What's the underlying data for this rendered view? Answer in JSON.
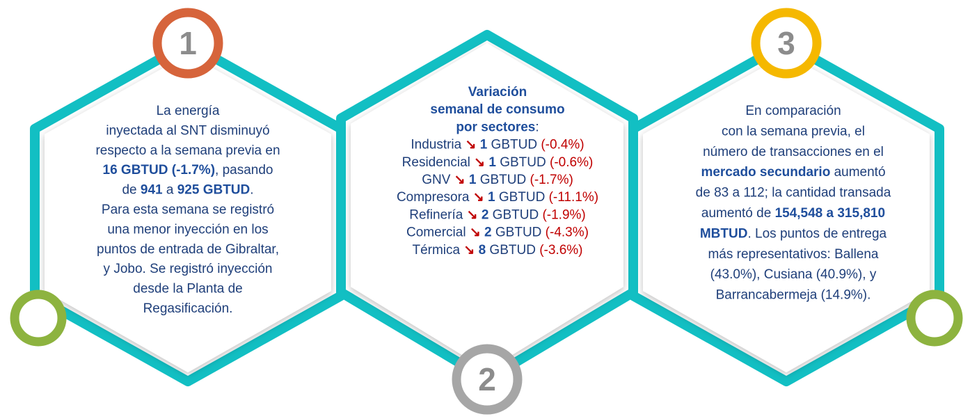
{
  "panels": [
    {
      "number": "1",
      "lines": [
        [
          "La energía"
        ],
        [
          "inyectada al SNT disminuyó"
        ],
        [
          "respecto a la semana previa en"
        ],
        [
          {
            "text": "16 GBTUD (-1.7%)",
            "style": "bold"
          },
          ", pasando"
        ],
        [
          "de ",
          {
            "text": "941",
            "style": "bold"
          },
          " a ",
          {
            "text": "925 GBTUD",
            "style": "bold"
          },
          "."
        ],
        [
          "Para esta semana se registró"
        ],
        [
          "una menor inyección en los"
        ],
        [
          "puntos de entrada de Gibraltar,"
        ],
        [
          "y Jobo. Se registró inyección"
        ],
        [
          "desde la Planta de"
        ],
        [
          "Regasificación."
        ]
      ]
    },
    {
      "number": "2",
      "lines": [
        [
          {
            "text": "Variación",
            "style": "bold"
          }
        ],
        [
          {
            "text": "semanal de consumo",
            "style": "bold"
          }
        ],
        [
          {
            "text": "por sectores",
            "style": "bold"
          },
          ":"
        ],
        [
          "Industria ",
          {
            "text": "↘",
            "style": "accent"
          },
          " ",
          {
            "text": "1",
            "style": "bold"
          },
          " GBTUD ",
          {
            "text": "(-0.4%)",
            "style": "accent"
          }
        ],
        [
          "Residencial ",
          {
            "text": "↘",
            "style": "accent"
          },
          " ",
          {
            "text": "1",
            "style": "bold"
          },
          " GBTUD ",
          {
            "text": "(-0.6%)",
            "style": "accent"
          }
        ],
        [
          "GNV ",
          {
            "text": "↘",
            "style": "accent"
          },
          " ",
          {
            "text": "1",
            "style": "bold"
          },
          " GBTUD ",
          {
            "text": "(-1.7%)",
            "style": "accent"
          }
        ],
        [
          "Compresora ",
          {
            "text": "↘",
            "style": "accent"
          },
          " ",
          {
            "text": "1",
            "style": "bold"
          },
          " GBTUD ",
          {
            "text": "(-11.1%)",
            "style": "accent"
          }
        ],
        [
          "Refinería ",
          {
            "text": "↘",
            "style": "accent"
          },
          " ",
          {
            "text": "2",
            "style": "bold"
          },
          " GBTUD ",
          {
            "text": "(-1.9%)",
            "style": "accent"
          }
        ],
        [
          "Comercial ",
          {
            "text": "↘",
            "style": "accent"
          },
          " ",
          {
            "text": "2",
            "style": "bold"
          },
          " GBTUD ",
          {
            "text": "(-4.3%)",
            "style": "accent"
          }
        ],
        [
          "Térmica ",
          {
            "text": "↘",
            "style": "accent"
          },
          " ",
          {
            "text": "8",
            "style": "bold"
          },
          " GBTUD ",
          {
            "text": "(-3.6%)",
            "style": "accent"
          }
        ]
      ]
    },
    {
      "number": "3",
      "lines": [
        [
          "En comparación"
        ],
        [
          "con la semana previa, el"
        ],
        [
          "número de transacciones en el"
        ],
        [
          {
            "text": "mercado secundario",
            "style": "bold"
          },
          " aumentó"
        ],
        [
          "de 83 a 112; la cantidad transada"
        ],
        [
          "aumentó de ",
          {
            "text": "154,548 a 315,810",
            "style": "bold"
          }
        ],
        [
          {
            "text": "MBTUD",
            "style": "bold"
          },
          ". Los puntos de entrega"
        ],
        [
          "más representativos: Ballena"
        ],
        [
          "(43.0%), Cusiana (40.9%), y"
        ],
        [
          "Barrancabermeja (14.9%)."
        ]
      ]
    }
  ]
}
